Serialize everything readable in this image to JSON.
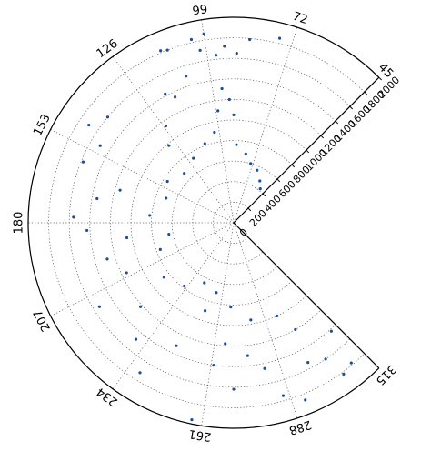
{
  "chart_data": {
    "type": "scatter",
    "projection": "polar",
    "title": "",
    "theta_unit": "degrees",
    "theta_range": [
      45,
      315
    ],
    "theta_direction": "counterclockwise",
    "r_range": [
      0,
      2000
    ],
    "grid": true,
    "grid_style": "dotted",
    "marker_color": "#1f4e96",
    "angular_tick_labels": [
      "45",
      "72",
      "99",
      "126",
      "153",
      "180",
      "207",
      "234",
      "261",
      "288",
      "315"
    ],
    "radial_tick_labels": [
      "0",
      "200",
      "400",
      "600",
      "800",
      "1000",
      "1200",
      "1400",
      "1600",
      "1800",
      "2000"
    ],
    "series": [
      {
        "points": [
          {
            "theta": 76,
            "r": 1850
          },
          {
            "theta": 85,
            "r": 1790
          },
          {
            "theta": 89,
            "r": 1650
          },
          {
            "theta": 93,
            "r": 1720
          },
          {
            "theta": 96,
            "r": 1640
          },
          {
            "theta": 99,
            "r": 1860
          },
          {
            "theta": 101,
            "r": 1710
          },
          {
            "theta": 103,
            "r": 1830
          },
          {
            "theta": 111,
            "r": 1800
          },
          {
            "theta": 113,
            "r": 1820
          },
          {
            "theta": 108,
            "r": 1500
          },
          {
            "theta": 115,
            "r": 1350
          },
          {
            "theta": 118,
            "r": 1420
          },
          {
            "theta": 92,
            "r": 1200
          },
          {
            "theta": 90,
            "r": 1050
          },
          {
            "theta": 95,
            "r": 1310
          },
          {
            "theta": 98,
            "r": 1100
          },
          {
            "theta": 125,
            "r": 1150
          },
          {
            "theta": 130,
            "r": 980
          },
          {
            "theta": 140,
            "r": 1600
          },
          {
            "theta": 146,
            "r": 1700
          },
          {
            "theta": 150,
            "r": 1500
          },
          {
            "theta": 158,
            "r": 1580
          },
          {
            "theta": 164,
            "r": 1150
          },
          {
            "theta": 170,
            "r": 1350
          },
          {
            "theta": 178,
            "r": 1560
          },
          {
            "theta": 183,
            "r": 1430
          },
          {
            "theta": 188,
            "r": 1050
          },
          {
            "theta": 196,
            "r": 1280
          },
          {
            "theta": 205,
            "r": 1150
          },
          {
            "theta": 212,
            "r": 1540
          },
          {
            "theta": 222,
            "r": 1220
          },
          {
            "theta": 230,
            "r": 1480
          },
          {
            "theta": 238,
            "r": 1720
          },
          {
            "theta": 245,
            "r": 1320
          },
          {
            "theta": 252,
            "r": 900
          },
          {
            "theta": 258,
            "r": 1960
          },
          {
            "theta": 262,
            "r": 1400
          },
          {
            "theta": 266,
            "r": 1180
          },
          {
            "theta": 270,
            "r": 1620
          },
          {
            "theta": 276,
            "r": 1300
          },
          {
            "theta": 282,
            "r": 1450
          },
          {
            "theta": 286,
            "r": 1750
          },
          {
            "theta": 292,
            "r": 1860
          },
          {
            "theta": 298,
            "r": 1540
          },
          {
            "theta": 304,
            "r": 1600
          },
          {
            "theta": 306,
            "r": 1820
          },
          {
            "theta": 310,
            "r": 1780
          },
          {
            "theta": 312,
            "r": 1420
          },
          {
            "theta": 300,
            "r": 1200
          },
          {
            "theta": 295,
            "r": 1000
          },
          {
            "theta": 280,
            "r": 960
          },
          {
            "theta": 268,
            "r": 820
          },
          {
            "theta": 256,
            "r": 700
          },
          {
            "theta": 244,
            "r": 650
          },
          {
            "theta": 232,
            "r": 780
          },
          {
            "theta": 218,
            "r": 860
          },
          {
            "theta": 200,
            "r": 760
          },
          {
            "theta": 190,
            "r": 640
          },
          {
            "theta": 175,
            "r": 820
          },
          {
            "theta": 160,
            "r": 700
          },
          {
            "theta": 148,
            "r": 760
          },
          {
            "theta": 135,
            "r": 680
          },
          {
            "theta": 122,
            "r": 740
          },
          {
            "theta": 110,
            "r": 820
          },
          {
            "theta": 102,
            "r": 900
          },
          {
            "theta": 88,
            "r": 760
          },
          {
            "theta": 80,
            "r": 680
          },
          {
            "theta": 74,
            "r": 600
          },
          {
            "theta": 66,
            "r": 560
          },
          {
            "theta": 58,
            "r": 480
          },
          {
            "theta": 52,
            "r": 420
          }
        ]
      }
    ]
  }
}
